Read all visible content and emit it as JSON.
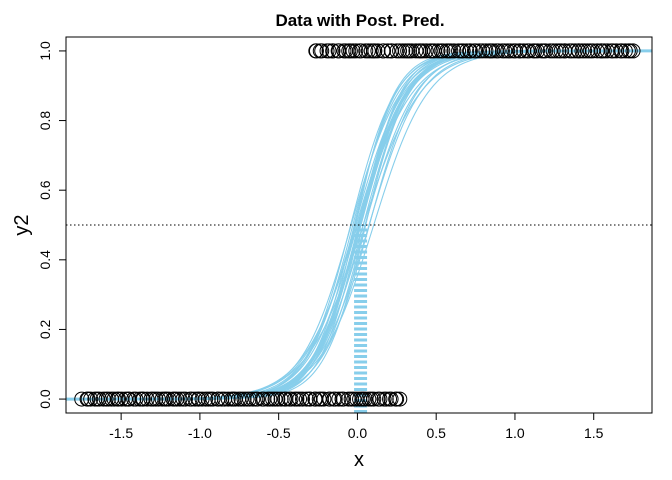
{
  "chart_data": {
    "type": "scatter",
    "title": "Data with Post. Pred.",
    "xlabel": "x",
    "ylabel": "y2",
    "xlim": [
      -1.85,
      1.87
    ],
    "ylim": [
      -0.04,
      1.04
    ],
    "x_ticks": [
      "-1.5",
      "-1.0",
      "-0.5",
      "0.0",
      "0.5",
      "1.0",
      "1.5"
    ],
    "y_ticks": [
      "0.0",
      "0.2",
      "0.4",
      "0.6",
      "0.8",
      "1.0"
    ],
    "reference_line_y": 0.5,
    "threshold_x": 0.02,
    "data_x_range": [
      -1.75,
      1.76
    ],
    "y0_x_max": 0.28,
    "y1_x_min": -0.28,
    "posterior_curves": [
      {
        "b0": -0.6,
        "b1": 5.8
      },
      {
        "b0": -0.3,
        "b1": 6.2
      },
      {
        "b0": 0.0,
        "b1": 6.5
      },
      {
        "b0": 0.2,
        "b1": 6.9
      },
      {
        "b0": -0.1,
        "b1": 7.3
      },
      {
        "b0": -0.4,
        "b1": 7.6
      },
      {
        "b0": 0.1,
        "b1": 8.0
      },
      {
        "b0": -0.2,
        "b1": 5.5
      },
      {
        "b0": 0.3,
        "b1": 7.0
      },
      {
        "b0": -0.5,
        "b1": 6.6
      },
      {
        "b0": 0.05,
        "b1": 6.0
      },
      {
        "b0": -0.15,
        "b1": 7.8
      },
      {
        "b0": 0.25,
        "b1": 6.3
      },
      {
        "b0": -0.35,
        "b1": 7.1
      },
      {
        "b0": 0.0,
        "b1": 5.7
      },
      {
        "b0": -0.25,
        "b1": 6.8
      },
      {
        "b0": 0.15,
        "b1": 7.5
      },
      {
        "b0": -0.45,
        "b1": 6.1
      },
      {
        "b0": 0.1,
        "b1": 6.4
      },
      {
        "b0": -0.05,
        "b1": 7.2
      }
    ],
    "curve_color": "#87ceeb",
    "point_color": "#000000",
    "grid": false
  }
}
